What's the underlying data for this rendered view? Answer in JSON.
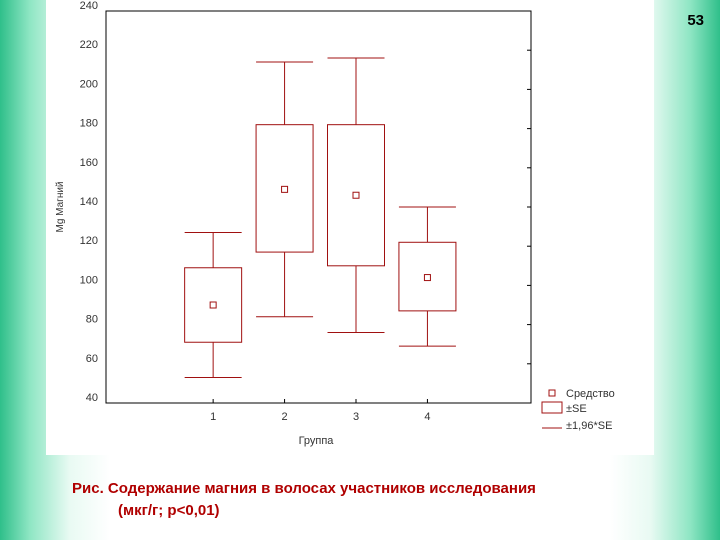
{
  "page": {
    "number": "53"
  },
  "caption": {
    "line1": "Рис.  Содержание магния в волосах участников исследования",
    "line2": "(мкг/г; р<0,01)"
  },
  "colors": {
    "box": "#a01010",
    "axis": "#000000",
    "text": "#333333",
    "caption": "#b00000"
  },
  "chart_data": {
    "type": "box",
    "xlabel": "Группа",
    "ylabel": "Mg Магний",
    "ylim": [
      40,
      240
    ],
    "yticks": [
      40,
      60,
      80,
      100,
      120,
      140,
      160,
      180,
      200,
      220,
      240
    ],
    "categories": [
      "1",
      "2",
      "3",
      "4"
    ],
    "groups": [
      {
        "category": "1",
        "mean": 90,
        "se_low": 71,
        "se_high": 109,
        "ci_low": 53,
        "ci_high": 127
      },
      {
        "category": "2",
        "mean": 149,
        "se_low": 117,
        "se_high": 182,
        "ci_low": 84,
        "ci_high": 214
      },
      {
        "category": "3",
        "mean": 146,
        "se_low": 110,
        "se_high": 182,
        "ci_low": 76,
        "ci_high": 216
      },
      {
        "category": "4",
        "mean": 104,
        "se_low": 87,
        "se_high": 122,
        "ci_low": 69,
        "ci_high": 140
      }
    ],
    "legend": {
      "position": "bottom-right",
      "entries": [
        {
          "symbol": "square",
          "label": "Средство"
        },
        {
          "symbol": "box",
          "label": "±SE"
        },
        {
          "symbol": "whisker",
          "label": "±1,96*SE"
        }
      ]
    },
    "grid": false
  }
}
